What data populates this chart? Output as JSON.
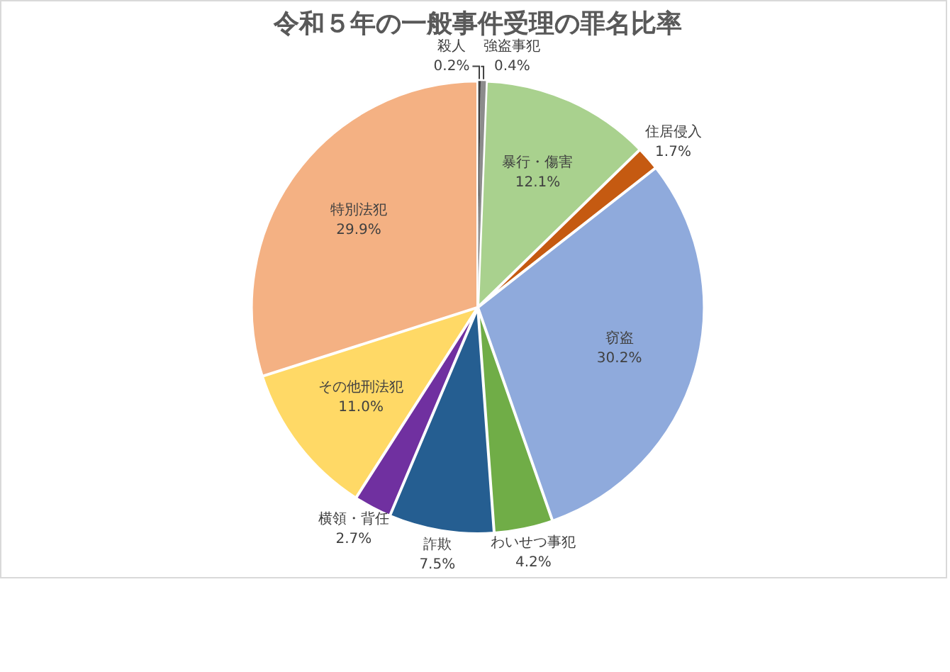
{
  "chart_data": {
    "type": "pie",
    "title": "令和５年の一般事件受理の罪名比率",
    "categories": [
      "殺人",
      "強盗事犯",
      "暴行・傷害",
      "住居侵入",
      "窃盗",
      "わいせつ事犯",
      "詐欺",
      "横領・背任",
      "その他刑法犯",
      "特別法犯"
    ],
    "values": [
      0.2,
      0.4,
      12.1,
      1.7,
      30.2,
      4.2,
      7.5,
      2.7,
      11.0,
      29.9
    ],
    "colors": [
      "#404040",
      "#8c8c8c",
      "#a9d18e",
      "#c55a11",
      "#8faadc",
      "#70ad47",
      "#255e91",
      "#7030a0",
      "#ffd966",
      "#f4b183"
    ],
    "value_labels": [
      "0.2%",
      "0.4%",
      "12.1%",
      "1.7%",
      "30.2%",
      "4.2%",
      "7.5%",
      "2.7%",
      "11.0%",
      "29.9%"
    ]
  }
}
